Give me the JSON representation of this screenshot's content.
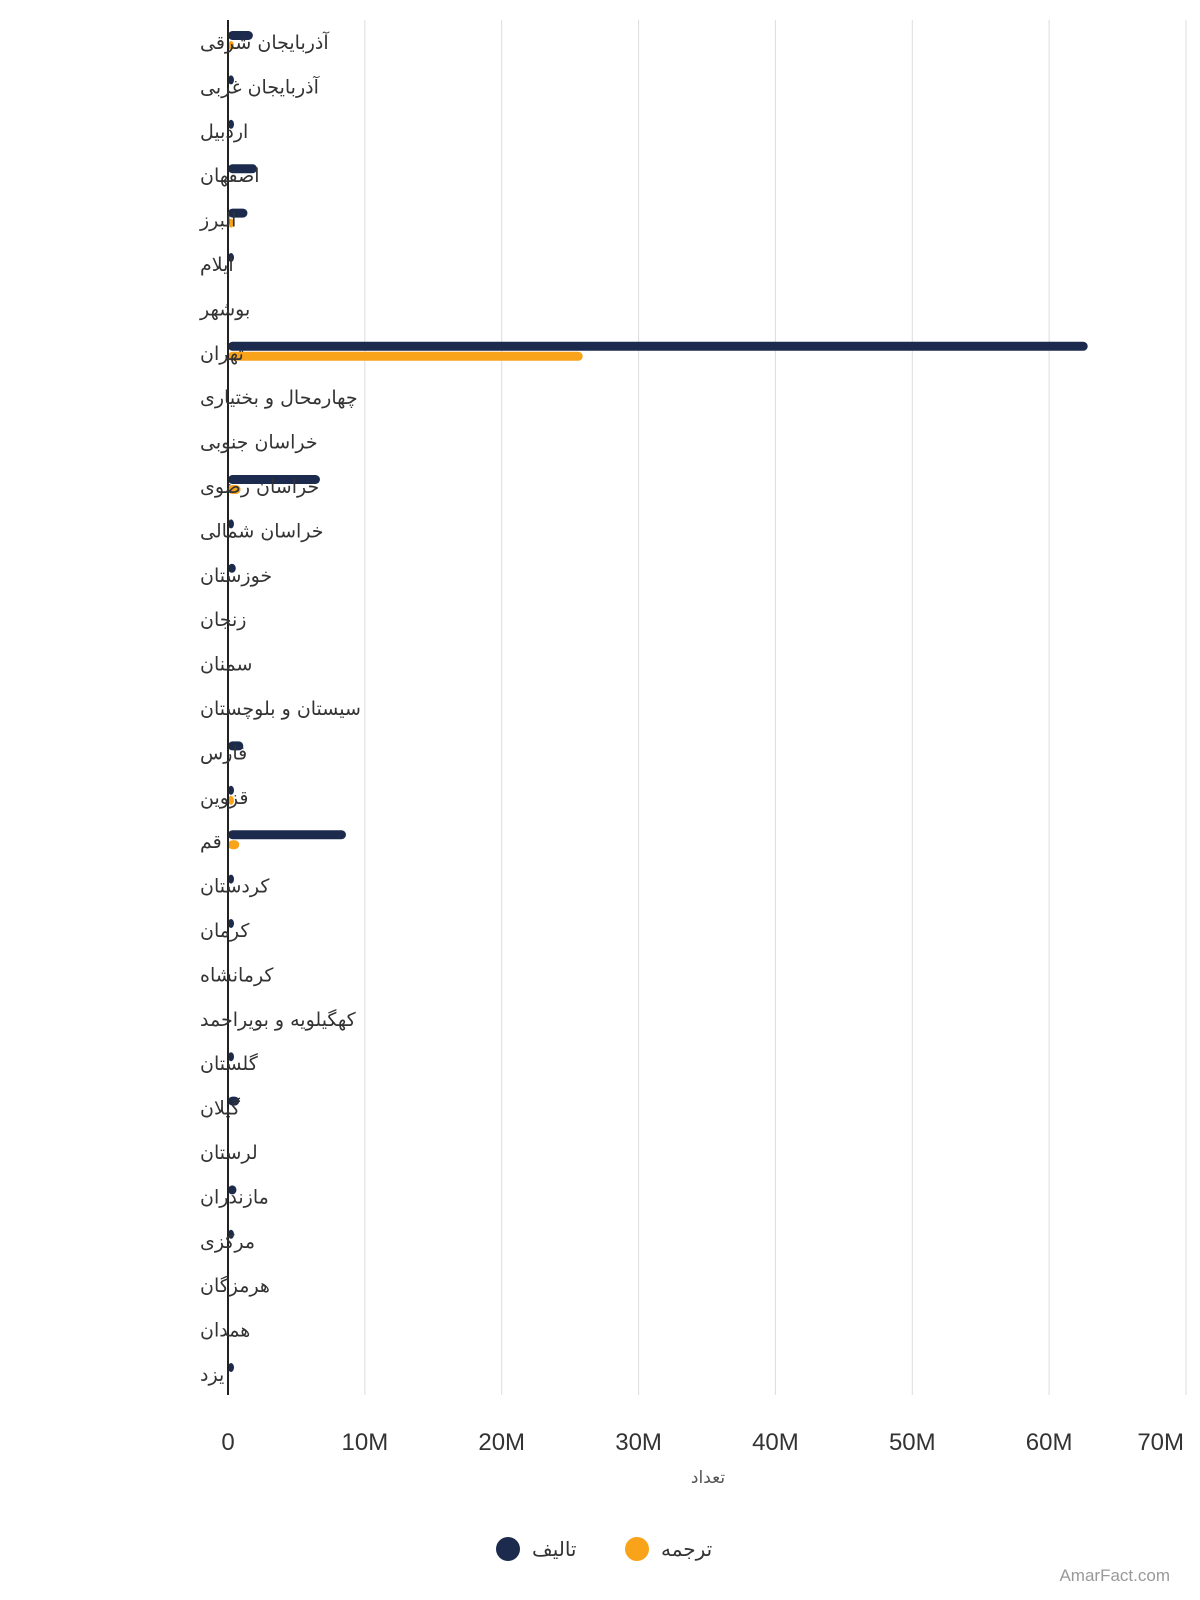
{
  "chart_data": {
    "type": "bar",
    "orientation": "horizontal",
    "categories": [
      "آذربایجان شرقی",
      "آذربایجان غربی",
      "اردبیل",
      "اصفهان",
      "البرز",
      "ایلام",
      "بوشهر",
      "تهران",
      "چهارمحال و بختیاری",
      "خراسان جنوبی",
      "خراسان رضوی",
      "خراسان شمالی",
      "خوزستان",
      "زنجان",
      "سمنان",
      "سیستان و بلوچستان",
      "فارس",
      "قزوین",
      "قم",
      "کردستان",
      "کرمان",
      "کرمانشاه",
      "کهگیلویه و بویراحمد",
      "گلستان",
      "گیلان",
      "لرستان",
      "مازندران",
      "مرکزی",
      "هرمزگان",
      "همدان",
      "یزد"
    ],
    "series": [
      {
        "name": "تالیف",
        "color": "#1c2a4d",
        "values": [
          1600000,
          150000,
          150000,
          1900000,
          1200000,
          80000,
          0,
          62600000,
          0,
          0,
          6500000,
          100000,
          350000,
          0,
          0,
          0,
          900000,
          200000,
          8400000,
          200000,
          200000,
          0,
          0,
          80000,
          600000,
          0,
          400000,
          80000,
          0,
          0,
          200000
        ]
      },
      {
        "name": "ترجمه",
        "color": "#f9a31a",
        "values": [
          100000,
          0,
          0,
          0,
          100000,
          0,
          0,
          25700000,
          0,
          0,
          700000,
          0,
          0,
          0,
          0,
          0,
          0,
          100000,
          600000,
          0,
          0,
          0,
          0,
          0,
          0,
          0,
          0,
          0,
          0,
          0,
          0
        ]
      }
    ],
    "x_ticks": [
      "0",
      "10M",
      "20M",
      "30M",
      "40M",
      "50M",
      "60M",
      "70M"
    ],
    "xlim": [
      0,
      70000000
    ],
    "xlabel": "تعداد",
    "grid": true,
    "legend_position": "bottom"
  },
  "credit": "AmarFact.com"
}
